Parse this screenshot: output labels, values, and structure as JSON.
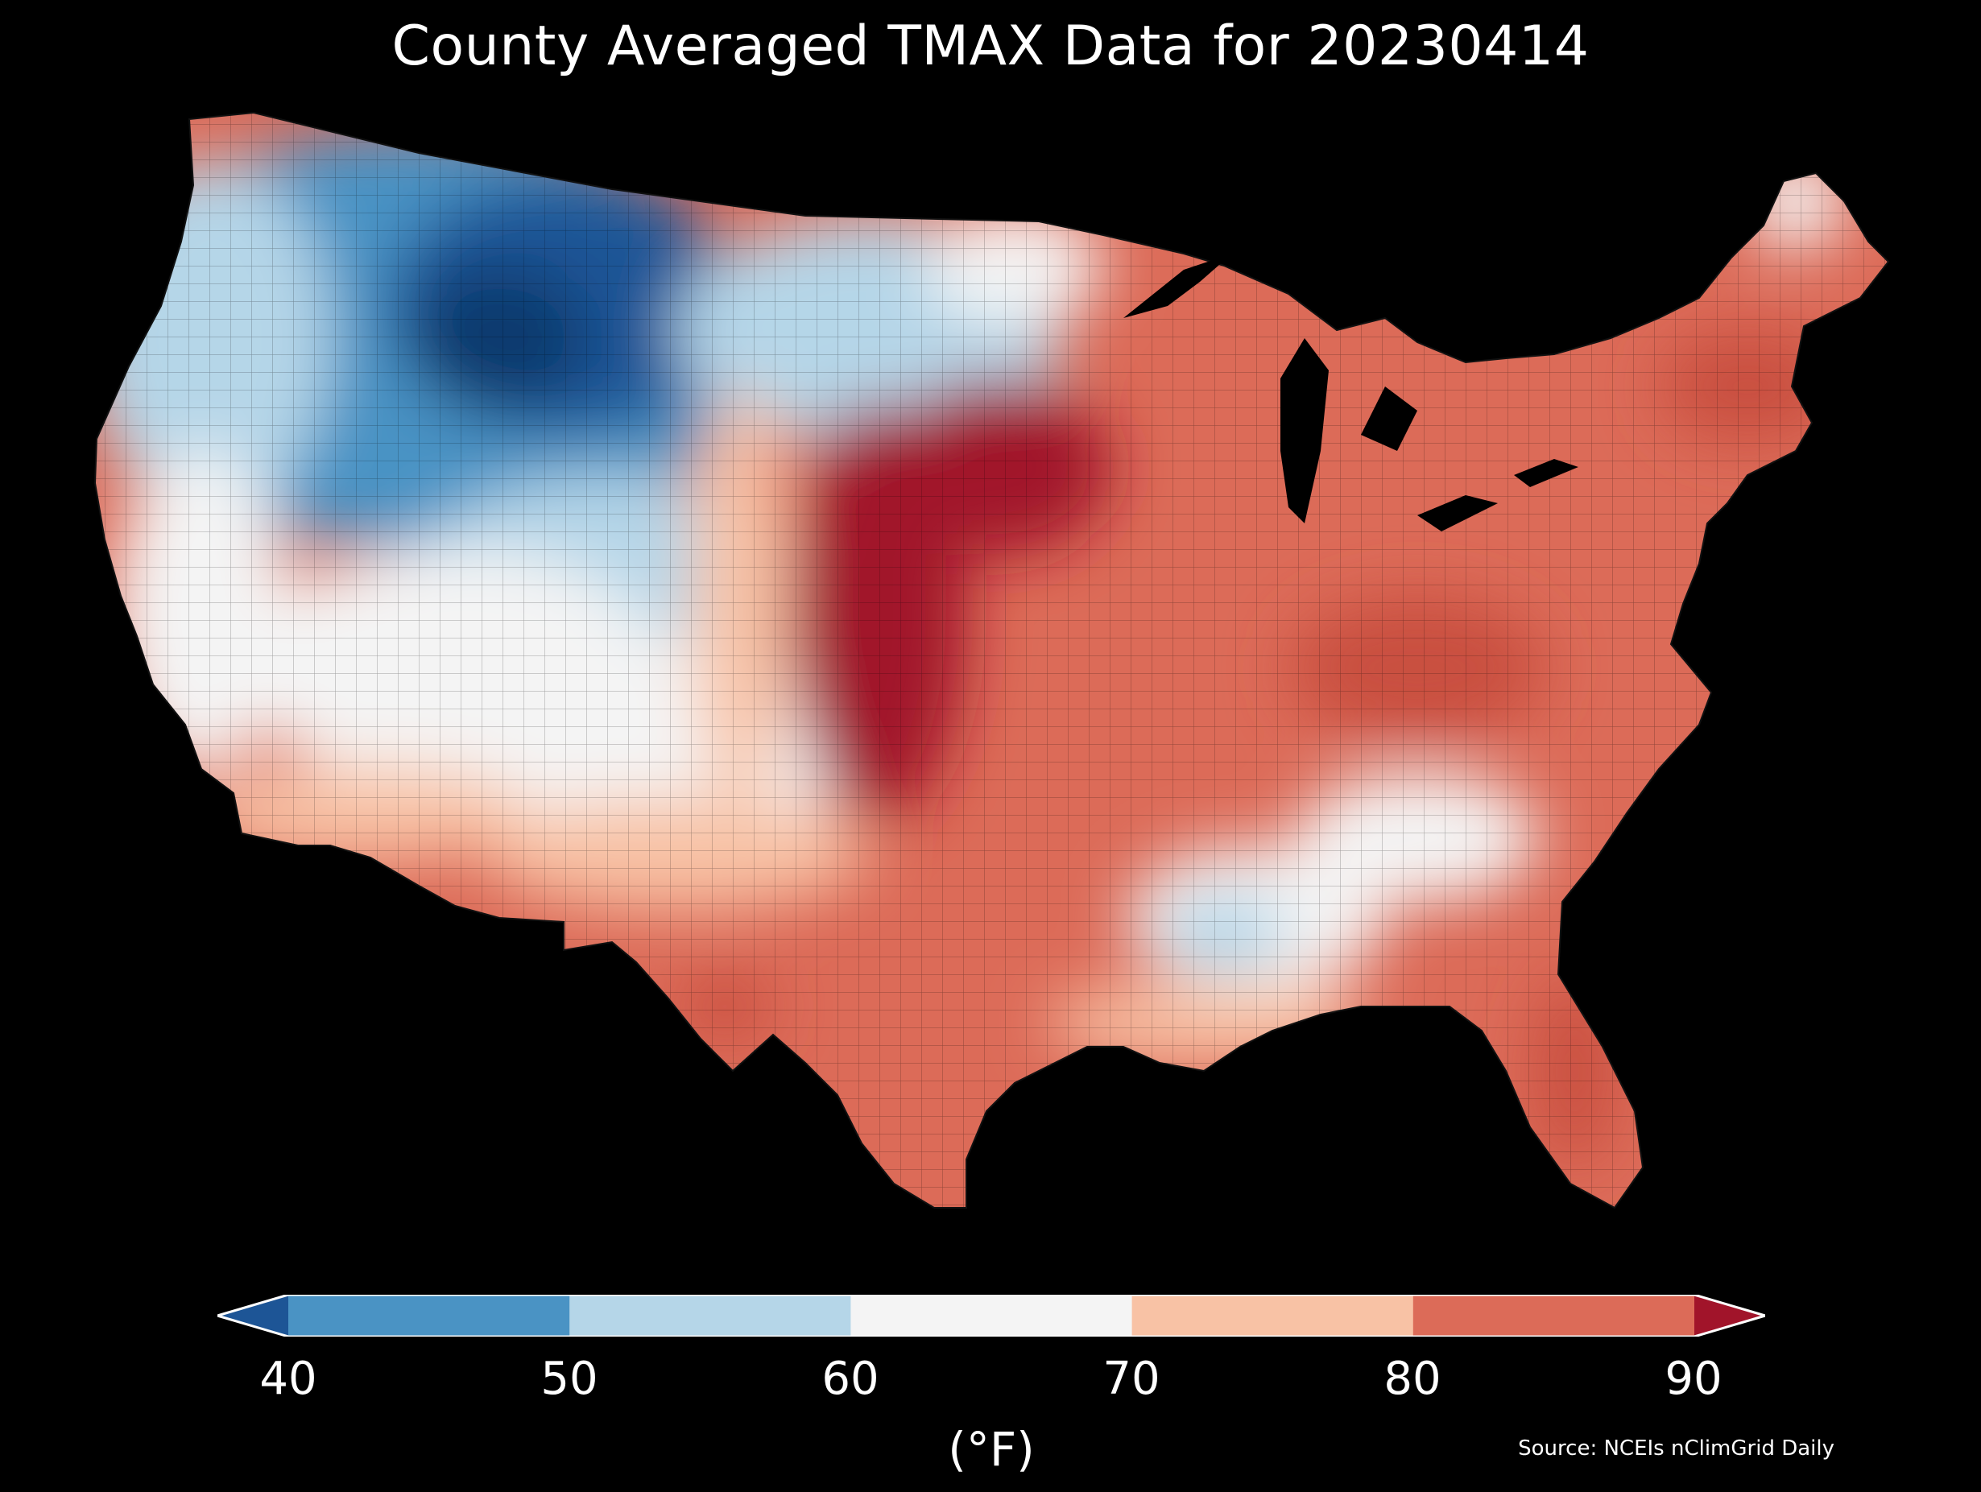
{
  "title": "County Averaged TMAX Data for 20230414",
  "colorbar": {
    "unit_label": "(°F)",
    "ticks": [
      "40",
      "50",
      "60",
      "70",
      "80",
      "90"
    ],
    "bins": [
      {
        "label": "<40",
        "color": "#1d5596"
      },
      {
        "label": "40-50",
        "color": "#4a93c4"
      },
      {
        "label": "50-60",
        "color": "#b5d6e8"
      },
      {
        "label": "60-70",
        "color": "#f4f4f4"
      },
      {
        "label": "70-80",
        "color": "#f8c2a5"
      },
      {
        "label": "80-90",
        "color": "#dc6b58"
      },
      {
        "label": ">90",
        "color": "#a1142a"
      }
    ],
    "extend": "both"
  },
  "source": "Source: NCEIs nClimGrid Daily",
  "map": {
    "region": "Contiguous United States",
    "variable": "TMAX",
    "date": "20230414",
    "background": "#000000",
    "county_borders": true,
    "regional_pattern": [
      {
        "region": "Northern Rockies / Montana / Wyoming / Idaho",
        "bin": "<40 to 40-50"
      },
      {
        "region": "Pacific Northwest / Northern Plains / Great Basin",
        "bin": "40-50 to 50-60"
      },
      {
        "region": "California / Colorado / New Mexico / Minnesota",
        "bin": "50-60 to 60-70"
      },
      {
        "region": "Southern and Central Plains (Kansas/Oklahoma/Nebraska)",
        "bin": "80-90 to >90"
      },
      {
        "region": "Midwest / Ohio Valley / Northeast",
        "bin": "80-90"
      },
      {
        "region": "Mid-South / Tennessee / Mississippi",
        "bin": "60-70 to 70-80"
      },
      {
        "region": "Texas / Florida / Southeast coast",
        "bin": "80-90"
      },
      {
        "region": "Northern Maine",
        "bin": "60-70"
      }
    ]
  }
}
